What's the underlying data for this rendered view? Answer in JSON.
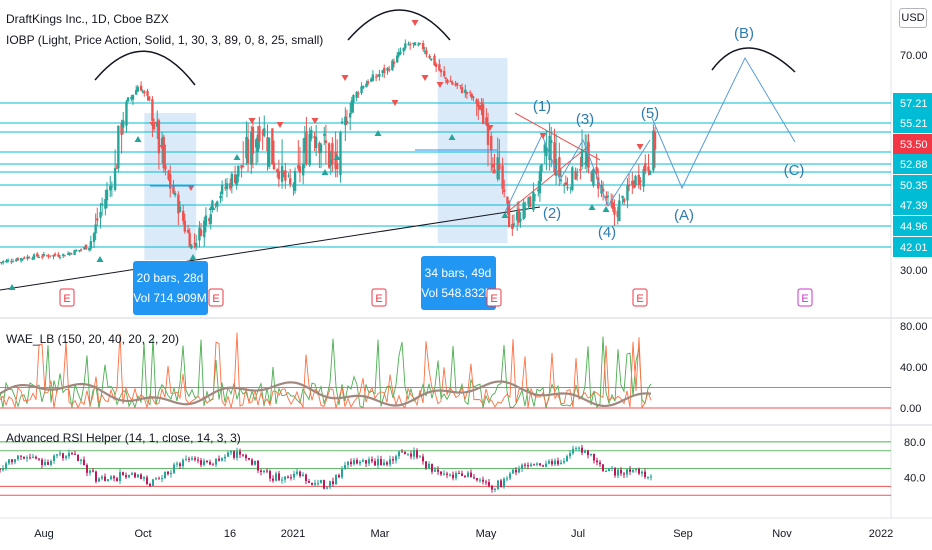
{
  "header": {
    "symbol_title": "DraftKings Inc., 1D, Cboe BZX",
    "indicator1": "IOBP (Light, Price Action, Solid, 1, 30, 3, 89, 0, 8, 25, small)",
    "currency": "USD"
  },
  "panes": {
    "wae_title": "WAE_LB (150, 20, 40, 20, 2, 20)",
    "rsi_title": "Advanced RSI Helper (14, 1, close, 14, 3, 3)"
  },
  "annotations": {
    "box1_line1": "20 bars, 28d",
    "box1_line2": "Vol 714.909M",
    "box2_line1": "34 bars, 49d",
    "box2_line2": "Vol 548.832M",
    "wave1": "(1)",
    "wave2": "(2)",
    "wave3": "(3)",
    "wave4": "(4)",
    "wave5": "(5)",
    "waveA": "(A)",
    "waveB": "(B)",
    "waveC": "(C)",
    "earnings": "E"
  },
  "chart_data": [
    {
      "type": "candlestick",
      "title": "DraftKings Inc., 1D, Cboe BZX",
      "x_ticks": [
        "Aug",
        "Oct",
        "16",
        "2021",
        "Mar",
        "May",
        "Jul",
        "Sep",
        "Nov",
        "2022"
      ],
      "y_ticks": [
        70.0,
        30.0
      ],
      "y_tick_labels": [
        "70.00",
        "30.00"
      ],
      "level_labels": [
        57.21,
        55.21,
        53.5,
        52.88,
        50.35,
        47.39,
        44.96,
        42.01
      ],
      "current_price": 53.5,
      "close_series": [
        {
          "date": "2020-07-01",
          "close": 34
        },
        {
          "date": "2020-07-20",
          "close": 37
        },
        {
          "date": "2020-08-10",
          "close": 38
        },
        {
          "date": "2020-08-25",
          "close": 42
        },
        {
          "date": "2020-09-10",
          "close": 52
        },
        {
          "date": "2020-09-25",
          "close": 62
        },
        {
          "date": "2020-10-05",
          "close": 55
        },
        {
          "date": "2020-10-15",
          "close": 50
        },
        {
          "date": "2020-10-28",
          "close": 42
        },
        {
          "date": "2020-11-10",
          "close": 48
        },
        {
          "date": "2020-11-25",
          "close": 52
        },
        {
          "date": "2020-12-10",
          "close": 55
        },
        {
          "date": "2020-12-28",
          "close": 50
        },
        {
          "date": "2021-01-10",
          "close": 55
        },
        {
          "date": "2021-01-25",
          "close": 52
        },
        {
          "date": "2021-02-10",
          "close": 62
        },
        {
          "date": "2021-02-25",
          "close": 66
        },
        {
          "date": "2021-03-10",
          "close": 73
        },
        {
          "date": "2021-03-20",
          "close": 72
        },
        {
          "date": "2021-04-01",
          "close": 64
        },
        {
          "date": "2021-04-15",
          "close": 60
        },
        {
          "date": "2021-04-25",
          "close": 56
        },
        {
          "date": "2021-05-05",
          "close": 52
        },
        {
          "date": "2021-05-12",
          "close": 45
        },
        {
          "date": "2021-05-25",
          "close": 48
        },
        {
          "date": "2021-06-05",
          "close": 54
        },
        {
          "date": "2021-06-15",
          "close": 50
        },
        {
          "date": "2021-06-25",
          "close": 53
        },
        {
          "date": "2021-07-05",
          "close": 51
        },
        {
          "date": "2021-07-15",
          "close": 46
        },
        {
          "date": "2021-07-25",
          "close": 50
        },
        {
          "date": "2021-08-10",
          "close": 54
        }
      ],
      "projection": [
        {
          "date": "2021-08-10",
          "value": 54
        },
        {
          "date": "2021-09-01",
          "value": 48
        },
        {
          "date": "2021-10-10",
          "value": 70
        },
        {
          "date": "2021-11-05",
          "value": 54
        }
      ]
    },
    {
      "type": "line",
      "title": "WAE_LB (150, 20, 40, 20, 2, 20)",
      "y_ticks": [
        80.0,
        40.0,
        0.0
      ],
      "y_tick_labels": [
        "80.00",
        "40.00",
        "0.00"
      ]
    },
    {
      "type": "line",
      "title": "Advanced RSI Helper (14, 1, close, 14, 3, 3)",
      "y_ticks": [
        80.0,
        40.0
      ],
      "y_tick_labels": [
        "80.0",
        "40.0"
      ]
    }
  ],
  "colors": {
    "up": "#26a69a",
    "down": "#ef5350",
    "level_line": "#00bcd4",
    "box_fill": "#cfe3f7",
    "label_bg": "#2196f3",
    "wave_text": "#2e7bb0",
    "price_tag": "#f23645",
    "level_tag": "#00bcd4",
    "earnings": "#f23645",
    "earnings_future": "#cc33cc"
  }
}
